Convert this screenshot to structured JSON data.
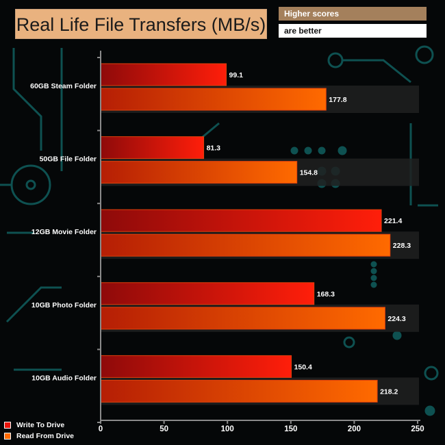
{
  "colors": {
    "background": "#050708",
    "circuit": "#0f5a5a",
    "write_dark": "#8e0a0a",
    "write_light": "#ff1e0a",
    "read_dark": "#b51e05",
    "read_light": "#ff6a00",
    "band": "#202020"
  },
  "header": {
    "title": "Real Life File Transfers (MB/s)",
    "note_top": "Higher scores",
    "note_bottom": "are better"
  },
  "legend": [
    {
      "label": "Write To  Drive",
      "color": "#e8140a"
    },
    {
      "label": "Read From  Drive",
      "color": "#ff6a00"
    }
  ],
  "chart_data": {
    "type": "bar",
    "orientation": "horizontal",
    "title": "Real Life File Transfers (MB/s)",
    "annotation": "Higher scores are better",
    "categories": [
      "60GB Steam Folder",
      "50GB File Folder",
      "12GB Movie Folder",
      "10GB Photo Folder",
      "10GB Audio Folder"
    ],
    "series": [
      {
        "name": "Write To  Drive",
        "values": [
          99.1,
          81.3,
          221.4,
          168.3,
          150.4
        ]
      },
      {
        "name": "Read From  Drive",
        "values": [
          177.8,
          154.8,
          228.3,
          224.3,
          218.2
        ]
      }
    ],
    "value_labels": [
      [
        "99.1",
        "81.3",
        "221.4",
        "168.3",
        "150.4"
      ],
      [
        "177.8",
        "154.8",
        "228.3",
        "224.3",
        "218.2"
      ]
    ],
    "xlim": [
      0,
      250
    ],
    "xticks": [
      0,
      50,
      100,
      150,
      200,
      250
    ],
    "xtick_labels": [
      "0",
      "50",
      "100",
      "150",
      "200",
      "250"
    ],
    "xlabel": "",
    "ylabel": "",
    "grid": false,
    "legend_position": "bottom-left"
  }
}
